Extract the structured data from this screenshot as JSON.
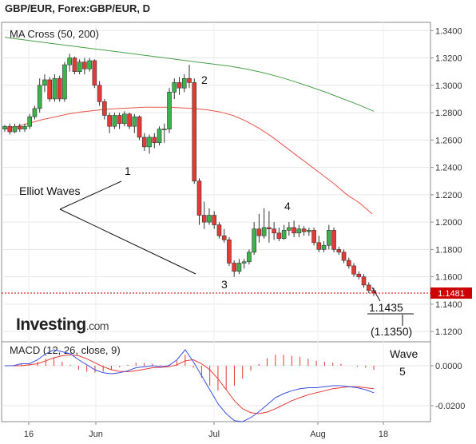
{
  "header": {
    "title": "GBP/EUR, Forex:GBP/EUR, D"
  },
  "brand": {
    "name": "Investing",
    "suffix": ".com"
  },
  "chart_data": [
    {
      "type": "candlestick",
      "legend": "MA Cross (50, 200)",
      "ylim": [
        1.1125,
        1.346
      ],
      "y_ticks": [
        "1.3400",
        "1.3200",
        "1.3000",
        "1.2800",
        "1.2600",
        "1.2400",
        "1.2200",
        "1.2000",
        "1.1800",
        "1.1600",
        "1.1400",
        "1.1200"
      ],
      "x_ticks": [
        "16",
        "Jun",
        "Jul",
        "Aug",
        "18"
      ],
      "last_price": {
        "value": 1.1481,
        "label": "1.1481"
      },
      "colors": {
        "up": "#3cb34a",
        "down": "#e53935",
        "ma50": "#e8534a",
        "ma200": "#4a9e4a",
        "price_line": "#cc0000"
      },
      "candles": [
        [
          1.268,
          1.27,
          1.266,
          1.271
        ],
        [
          1.27,
          1.266,
          1.264,
          1.272
        ],
        [
          1.266,
          1.27,
          1.265,
          1.272
        ],
        [
          1.27,
          1.268,
          1.266,
          1.272
        ],
        [
          1.268,
          1.27,
          1.266,
          1.272
        ],
        [
          1.27,
          1.277,
          1.268,
          1.279
        ],
        [
          1.277,
          1.283,
          1.275,
          1.285
        ],
        [
          1.283,
          1.3,
          1.28,
          1.305
        ],
        [
          1.3,
          1.304,
          1.295,
          1.308
        ],
        [
          1.304,
          1.29,
          1.288,
          1.306
        ],
        [
          1.29,
          1.305,
          1.288,
          1.308
        ],
        [
          1.305,
          1.29,
          1.288,
          1.307
        ],
        [
          1.29,
          1.315,
          1.288,
          1.317
        ],
        [
          1.315,
          1.32,
          1.31,
          1.323
        ],
        [
          1.32,
          1.31,
          1.308,
          1.321
        ],
        [
          1.31,
          1.317,
          1.308,
          1.319
        ],
        [
          1.317,
          1.312,
          1.308,
          1.32
        ],
        [
          1.312,
          1.318,
          1.31,
          1.32
        ],
        [
          1.318,
          1.3,
          1.298,
          1.319
        ],
        [
          1.3,
          1.288,
          1.285,
          1.303
        ],
        [
          1.288,
          1.278,
          1.275,
          1.29
        ],
        [
          1.278,
          1.27,
          1.265,
          1.28
        ],
        [
          1.27,
          1.278,
          1.268,
          1.28
        ],
        [
          1.278,
          1.272,
          1.268,
          1.28
        ],
        [
          1.272,
          1.279,
          1.27,
          1.281
        ],
        [
          1.279,
          1.27,
          1.268,
          1.28
        ],
        [
          1.27,
          1.277,
          1.265,
          1.279
        ],
        [
          1.277,
          1.262,
          1.26,
          1.278
        ],
        [
          1.262,
          1.255,
          1.252,
          1.265
        ],
        [
          1.255,
          1.262,
          1.25,
          1.264
        ],
        [
          1.262,
          1.258,
          1.254,
          1.265
        ],
        [
          1.258,
          1.268,
          1.256,
          1.27
        ],
        [
          1.268,
          1.268,
          1.258,
          1.272
        ],
        [
          1.268,
          1.295,
          1.265,
          1.298
        ],
        [
          1.295,
          1.302,
          1.29,
          1.305
        ],
        [
          1.302,
          1.298,
          1.293,
          1.306
        ],
        [
          1.298,
          1.305,
          1.295,
          1.308
        ],
        [
          1.305,
          1.302,
          1.298,
          1.315
        ],
        [
          1.302,
          1.23,
          1.228,
          1.305
        ],
        [
          1.23,
          1.205,
          1.198,
          1.232
        ],
        [
          1.205,
          1.2,
          1.195,
          1.215
        ],
        [
          1.2,
          1.205,
          1.198,
          1.21
        ],
        [
          1.205,
          1.198,
          1.195,
          1.208
        ],
        [
          1.198,
          1.19,
          1.188,
          1.2
        ],
        [
          1.19,
          1.187,
          1.185,
          1.195
        ],
        [
          1.187,
          1.17,
          1.168,
          1.189
        ],
        [
          1.17,
          1.164,
          1.16,
          1.172
        ],
        [
          1.164,
          1.17,
          1.162,
          1.173
        ],
        [
          1.17,
          1.171,
          1.166,
          1.173
        ],
        [
          1.171,
          1.178,
          1.169,
          1.18
        ],
        [
          1.178,
          1.195,
          1.176,
          1.2
        ],
        [
          1.195,
          1.19,
          1.185,
          1.206
        ],
        [
          1.19,
          1.196,
          1.188,
          1.21
        ],
        [
          1.196,
          1.195,
          1.185,
          1.208
        ],
        [
          1.195,
          1.192,
          1.187,
          1.2
        ],
        [
          1.192,
          1.188,
          1.186,
          1.196
        ],
        [
          1.188,
          1.194,
          1.187,
          1.198
        ],
        [
          1.194,
          1.196,
          1.19,
          1.2
        ],
        [
          1.196,
          1.192,
          1.189,
          1.201
        ],
        [
          1.192,
          1.195,
          1.189,
          1.198
        ],
        [
          1.195,
          1.193,
          1.19,
          1.197
        ],
        [
          1.193,
          1.194,
          1.19,
          1.196
        ],
        [
          1.194,
          1.185,
          1.183,
          1.196
        ],
        [
          1.185,
          1.18,
          1.178,
          1.19
        ],
        [
          1.18,
          1.183,
          1.178,
          1.186
        ],
        [
          1.183,
          1.194,
          1.18,
          1.198
        ],
        [
          1.194,
          1.18,
          1.178,
          1.196
        ],
        [
          1.18,
          1.178,
          1.176,
          1.182
        ],
        [
          1.178,
          1.172,
          1.17,
          1.18
        ],
        [
          1.172,
          1.168,
          1.166,
          1.174
        ],
        [
          1.168,
          1.162,
          1.16,
          1.17
        ],
        [
          1.162,
          1.16,
          1.158,
          1.164
        ],
        [
          1.16,
          1.154,
          1.152,
          1.162
        ],
        [
          1.154,
          1.15,
          1.148,
          1.156
        ],
        [
          1.15,
          1.1481,
          1.146,
          1.152
        ]
      ],
      "ma50": [
        1.268,
        1.27,
        1.2725,
        1.275,
        1.277,
        1.279,
        1.2805,
        1.2815,
        1.2825,
        1.283,
        1.2835,
        1.284,
        1.284,
        1.284,
        1.2835,
        1.283,
        1.282,
        1.2805,
        1.278,
        1.274,
        1.269,
        1.263,
        1.256,
        1.249,
        1.242,
        1.235,
        1.228,
        1.22,
        1.214,
        1.206
      ],
      "ma200": [
        1.335,
        1.3335,
        1.332,
        1.3305,
        1.329,
        1.3275,
        1.326,
        1.3245,
        1.323,
        1.3215,
        1.32,
        1.3185,
        1.317,
        1.3155,
        1.314,
        1.312,
        1.3095,
        1.3065,
        1.303,
        1.299,
        1.295,
        1.2905,
        1.286,
        1.281
      ]
    },
    {
      "type": "macd",
      "legend": "MACD (12, 26, close, 9)",
      "ylim": [
        -0.028,
        0.012
      ],
      "y_ticks": [
        "0.0000",
        "-0.0200"
      ],
      "x_ticks": [
        "16",
        "Jun",
        "Jul",
        "Aug",
        "18"
      ],
      "colors": {
        "macd": "#3b4fe0",
        "signal": "#e53935",
        "histogram": "#e53935"
      },
      "macd": [
        0.0,
        0.0,
        0.001,
        0.001,
        0.003,
        0.006,
        0.008,
        0.007,
        0.006,
        0.003,
        0.0005,
        -0.002,
        -0.0035,
        -0.004,
        -0.0035,
        -0.0025,
        -0.001,
        -0.0005,
        0.0,
        -0.0005,
        0.0,
        0.003,
        0.008,
        0.002,
        -0.005,
        -0.012,
        -0.019,
        -0.024,
        -0.0275,
        -0.028,
        -0.026,
        -0.023,
        -0.0195,
        -0.016,
        -0.014,
        -0.0125,
        -0.0115,
        -0.011,
        -0.011,
        -0.0105,
        -0.01,
        -0.01,
        -0.0105,
        -0.011,
        -0.012,
        -0.0135
      ],
      "signal": [
        0.0,
        0.0,
        0.0,
        0.0005,
        0.001,
        0.0025,
        0.004,
        0.005,
        0.0055,
        0.005,
        0.0035,
        0.0015,
        -0.0005,
        -0.002,
        -0.0028,
        -0.003,
        -0.0025,
        -0.0018,
        -0.001,
        -0.0008,
        -0.0005,
        0.0005,
        0.0025,
        0.003,
        0.001,
        -0.002,
        -0.0065,
        -0.012,
        -0.0175,
        -0.0215,
        -0.0235,
        -0.024,
        -0.0232,
        -0.0215,
        -0.0195,
        -0.0175,
        -0.016,
        -0.0145,
        -0.0135,
        -0.0125,
        -0.0115,
        -0.011,
        -0.0105,
        -0.0105,
        -0.011,
        -0.0115
      ],
      "histogram": [
        0.0,
        0.0,
        0.001,
        0.0005,
        0.002,
        0.0035,
        0.004,
        0.002,
        0.0005,
        -0.002,
        -0.003,
        -0.0035,
        -0.003,
        -0.002,
        -0.0007,
        0.0005,
        0.0015,
        0.0013,
        0.001,
        0.0003,
        0.0005,
        0.0025,
        0.0055,
        -0.001,
        -0.006,
        -0.01,
        -0.0125,
        -0.012,
        -0.01,
        -0.0065,
        -0.0025,
        0.001,
        0.0037,
        0.0055,
        0.0055,
        0.005,
        0.0045,
        0.0035,
        0.0025,
        0.002,
        0.0015,
        0.001,
        0.0,
        -0.0005,
        -0.001,
        -0.002
      ]
    }
  ],
  "annotations": {
    "wave1": "1",
    "wave2": "2",
    "wave3": "3",
    "wave4": "4",
    "elliot": "Elliot Waves",
    "target1": "1.1435",
    "target2": "(1.1350)",
    "wave_label": "Wave",
    "wave5": "5"
  }
}
